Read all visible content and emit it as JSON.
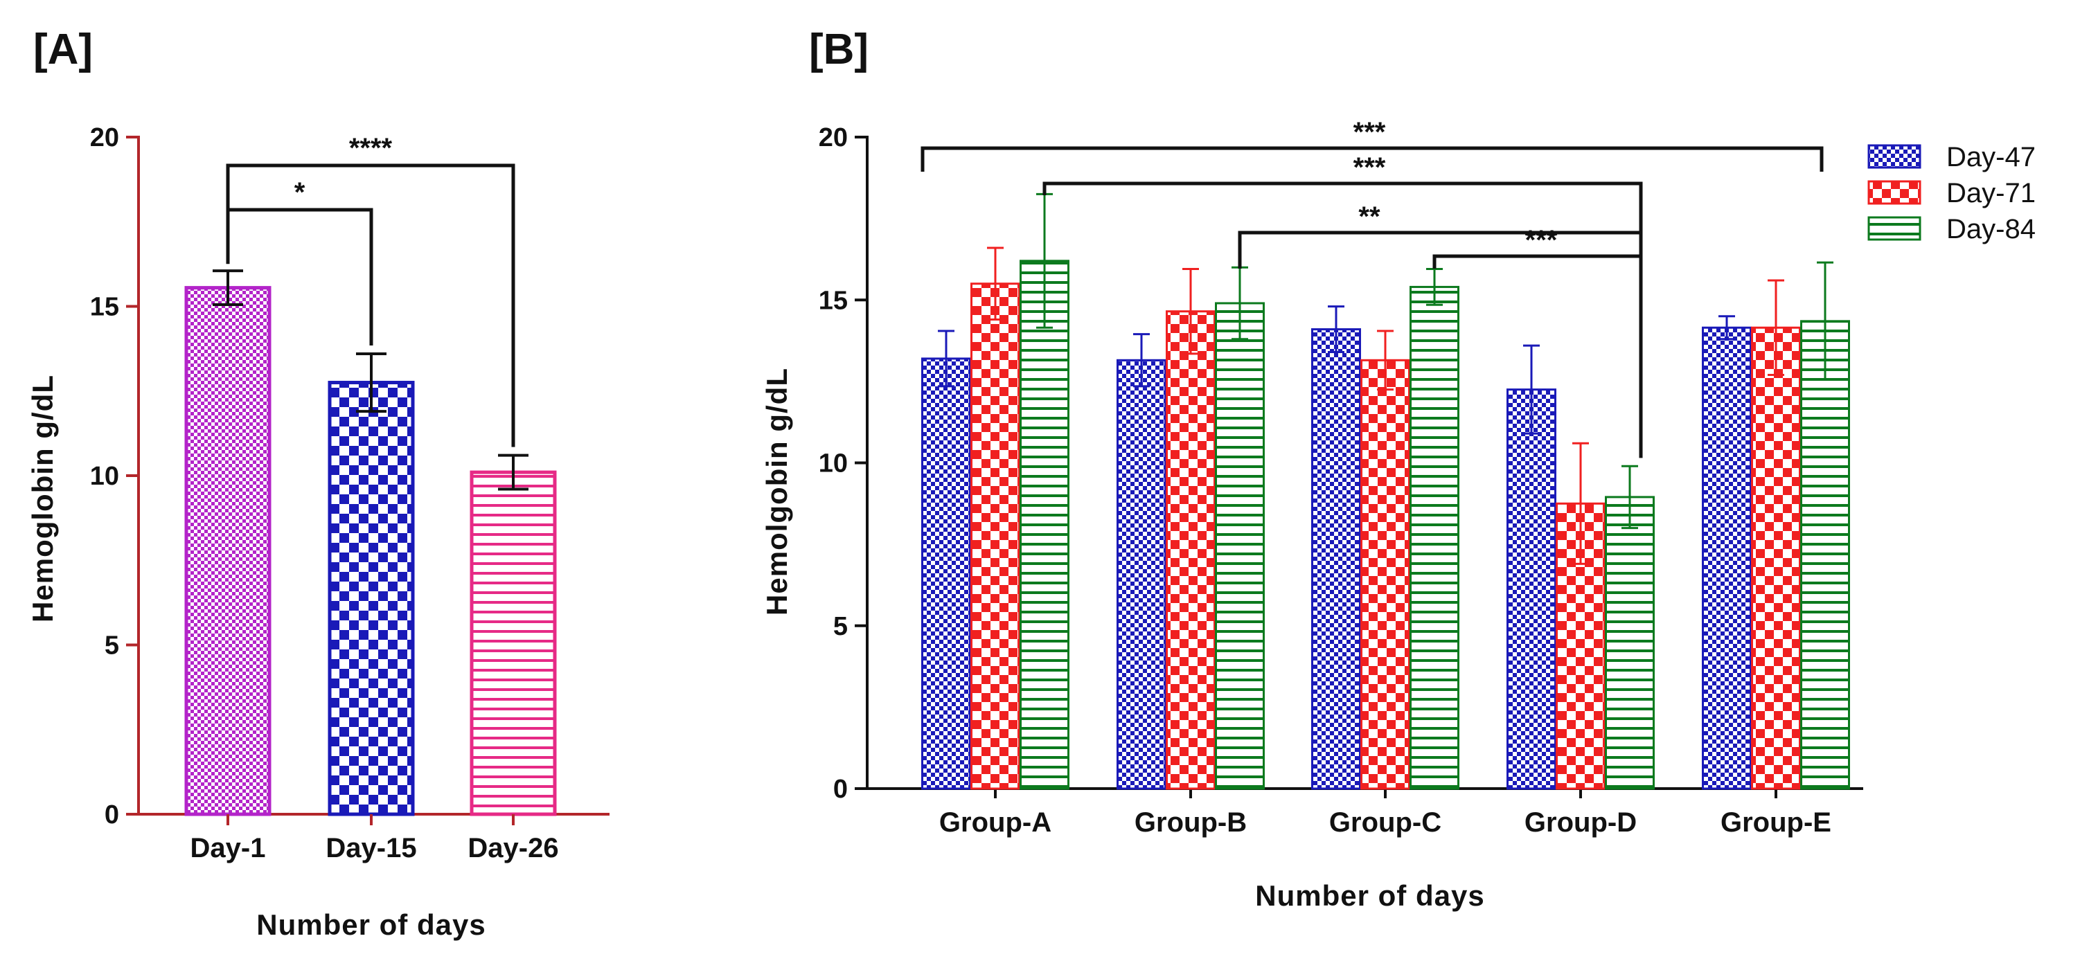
{
  "chart_data": [
    {
      "panel": "[A]",
      "type": "bar",
      "xlabel": "Number of days",
      "ylabel": "Hemoglobin g/dL",
      "ylim": [
        0,
        20
      ],
      "yticks": [
        "0",
        "5",
        "10",
        "15",
        "20"
      ],
      "categories": [
        "Day-1",
        "Day-15",
        "Day-26"
      ],
      "values": [
        15.55,
        12.75,
        10.1
      ],
      "errors": [
        0.5,
        0.85,
        0.5
      ],
      "colors": [
        "#b324c9",
        "#1a1ab8",
        "#e62a86"
      ],
      "patterns": [
        "dots",
        "checker",
        "hstripes"
      ],
      "significance": [
        {
          "from": 0,
          "to": 1,
          "label": "*"
        },
        {
          "from": 0,
          "to": 2,
          "label": "****"
        }
      ]
    },
    {
      "panel": "[B]",
      "type": "bar",
      "xlabel": "Number of days",
      "ylabel": "Hemolgobin g/dL",
      "ylim": [
        0,
        20
      ],
      "yticks": [
        "0",
        "5",
        "10",
        "15",
        "20"
      ],
      "categories": [
        "Group-A",
        "Group-B",
        "Group-C",
        "Group-D",
        "Group-E"
      ],
      "legend_position": "top-right",
      "series": [
        {
          "name": "Day-47",
          "color": "#1a1ab8",
          "pattern": "checker-small",
          "values": [
            13.2,
            13.15,
            14.1,
            12.25,
            14.15
          ],
          "errors": [
            0.85,
            0.8,
            0.7,
            1.35,
            0.35
          ]
        },
        {
          "name": "Day-71",
          "color": "#f02020",
          "pattern": "checker",
          "values": [
            15.5,
            14.65,
            13.15,
            8.75,
            14.15
          ],
          "errors": [
            1.1,
            1.3,
            0.9,
            1.85,
            1.45
          ]
        },
        {
          "name": "Day-84",
          "color": "#0c7a1e",
          "pattern": "hstripes",
          "values": [
            16.2,
            14.9,
            15.4,
            8.95,
            14.35
          ],
          "errors": [
            2.05,
            1.1,
            0.55,
            0.95,
            1.8
          ]
        }
      ],
      "significance": [
        {
          "from": "Group-A",
          "to": "Group-E",
          "label": "***"
        },
        {
          "from": "Group-A",
          "to": "Group-D",
          "label": "***"
        },
        {
          "from": "Group-B",
          "to": "Group-D",
          "label": "**"
        },
        {
          "from": "Group-C",
          "to": "Group-D",
          "label": "***"
        }
      ]
    }
  ]
}
